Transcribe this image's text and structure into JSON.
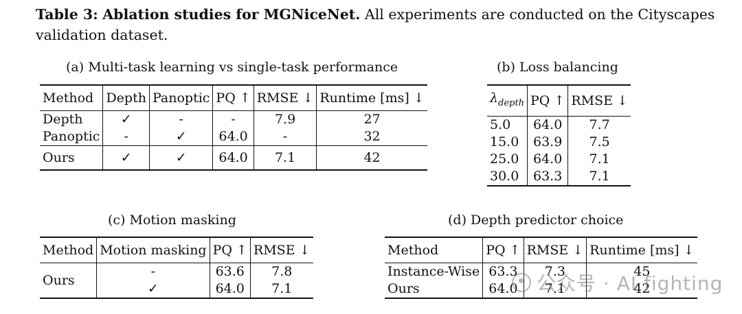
{
  "caption": {
    "label": "Table 3:",
    "bold": "Ablation studies for MGNiceNet.",
    "text": "All experiments are conducted on the Cityscapes validation dataset."
  },
  "table_a": {
    "title": "(a) Multi-task learning vs single-task performance",
    "headers": [
      "Method",
      "Depth",
      "Panoptic",
      "PQ ↑",
      "RMSE ↓",
      "Runtime [ms] ↓"
    ],
    "rows": [
      [
        "Depth",
        "✓",
        "-",
        "-",
        "7.9",
        "27"
      ],
      [
        "Panoptic",
        "-",
        "✓",
        "64.0",
        "-",
        "32"
      ],
      [
        "Ours",
        "✓",
        "✓",
        "64.0",
        "7.1",
        "42"
      ]
    ]
  },
  "table_b": {
    "title": "(b) Loss balancing",
    "lambda_symbol": "λ",
    "lambda_sub": "depth",
    "headers": [
      "PQ ↑",
      "RMSE ↓"
    ],
    "rows": [
      [
        "5.0",
        "64.0",
        "7.7"
      ],
      [
        "15.0",
        "63.9",
        "7.5"
      ],
      [
        "25.0",
        "64.0",
        "7.1"
      ],
      [
        "30.0",
        "63.3",
        "7.1"
      ]
    ]
  },
  "table_c": {
    "title": "(c) Motion masking",
    "headers": [
      "Method",
      "Motion masking",
      "PQ ↑",
      "RMSE ↓"
    ],
    "method": "Ours",
    "rows": [
      [
        "-",
        "63.6",
        "7.8"
      ],
      [
        "✓",
        "64.0",
        "7.1"
      ]
    ]
  },
  "table_d": {
    "title": "(d) Depth predictor choice",
    "headers": [
      "Method",
      "PQ ↑",
      "RMSE ↓",
      "Runtime [ms] ↓"
    ],
    "rows": [
      [
        "Instance-Wise",
        "63.3",
        "7.3",
        "45"
      ],
      [
        "Ours",
        "64.0",
        "7.1",
        "42"
      ]
    ]
  },
  "watermark": {
    "text": "公众号 · AI fighting",
    "icon": "wechat-logo-icon"
  }
}
